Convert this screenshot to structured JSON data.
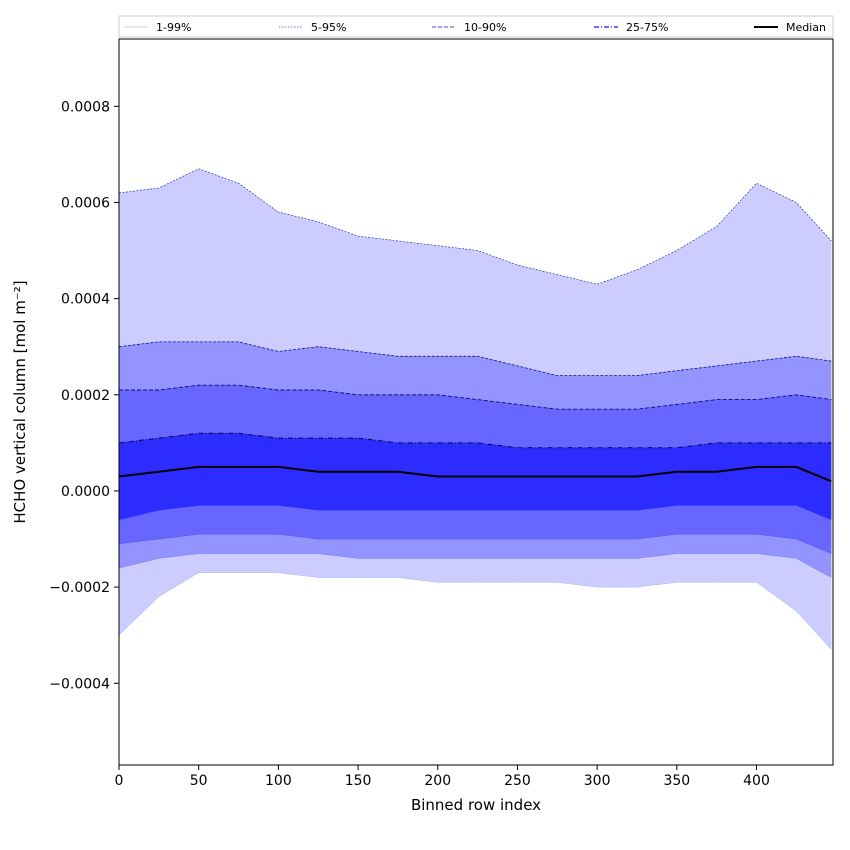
{
  "chart_data": {
    "type": "area",
    "xlabel": "Binned row index",
    "ylabel": "HCHO vertical column [mol m⁻²]",
    "xlim": [
      0,
      448
    ],
    "ylim": [
      -0.00057,
      0.00094
    ],
    "xticks": [
      0,
      50,
      100,
      150,
      200,
      250,
      300,
      350,
      400
    ],
    "xtick_labels": [
      "0",
      "50",
      "100",
      "150",
      "200",
      "250",
      "300",
      "350",
      "400"
    ],
    "yticks": [
      -0.0004,
      -0.0002,
      0.0,
      0.0002,
      0.0004,
      0.0006,
      0.0008
    ],
    "ytick_labels": [
      "−0.0004",
      "−0.0002",
      "0.0000",
      "0.0002",
      "0.0004",
      "0.0006",
      "0.0008"
    ],
    "grid": false,
    "legend_position": "top, spanning full width",
    "legend": [
      {
        "label": "1-99%",
        "color": "#d0d0d0",
        "style": "solid-thin"
      },
      {
        "label": "5-95%",
        "color": "#7a7ad8",
        "style": "dotted"
      },
      {
        "label": "10-90%",
        "color": "#6a6af0",
        "style": "dashed"
      },
      {
        "label": "25-75%",
        "color": "#3a3af0",
        "style": "dashdot"
      },
      {
        "label": "Median",
        "color": "#000000",
        "style": "solid-thick"
      }
    ],
    "band_colors": [
      "#ccccff",
      "#9494ff",
      "#6767ff",
      "#2c2cff"
    ],
    "x": [
      0,
      25,
      50,
      75,
      100,
      125,
      150,
      175,
      200,
      225,
      250,
      275,
      300,
      325,
      350,
      375,
      400,
      425,
      447
    ],
    "series": [
      {
        "name": "99%",
        "values": [
          0.00062,
          0.00063,
          0.00067,
          0.00064,
          0.00058,
          0.00056,
          0.00053,
          0.00052,
          0.00051,
          0.0005,
          0.00047,
          0.00045,
          0.00043,
          0.00046,
          0.0005,
          0.00055,
          0.00064,
          0.0006,
          0.00052
        ]
      },
      {
        "name": "95%",
        "values": [
          0.0003,
          0.00031,
          0.00031,
          0.00031,
          0.00029,
          0.0003,
          0.00029,
          0.00028,
          0.00028,
          0.00028,
          0.00026,
          0.00024,
          0.00024,
          0.00024,
          0.00025,
          0.00026,
          0.00027,
          0.00028,
          0.00027
        ]
      },
      {
        "name": "90%",
        "values": [
          0.00021,
          0.00021,
          0.00022,
          0.00022,
          0.00021,
          0.00021,
          0.0002,
          0.0002,
          0.0002,
          0.00019,
          0.00018,
          0.00017,
          0.00017,
          0.00017,
          0.00018,
          0.00019,
          0.00019,
          0.0002,
          0.00019
        ]
      },
      {
        "name": "75%",
        "values": [
          0.0001,
          0.00011,
          0.00012,
          0.00012,
          0.00011,
          0.00011,
          0.00011,
          0.0001,
          0.0001,
          0.0001,
          9e-05,
          9e-05,
          9e-05,
          9e-05,
          9e-05,
          0.0001,
          0.0001,
          0.0001,
          0.0001
        ]
      },
      {
        "name": "Median",
        "values": [
          3e-05,
          4e-05,
          5e-05,
          5e-05,
          5e-05,
          4e-05,
          4e-05,
          4e-05,
          3e-05,
          3e-05,
          3e-05,
          3e-05,
          3e-05,
          3e-05,
          4e-05,
          4e-05,
          5e-05,
          5e-05,
          2e-05
        ]
      },
      {
        "name": "25%",
        "values": [
          -6e-05,
          -4e-05,
          -3e-05,
          -3e-05,
          -3e-05,
          -4e-05,
          -4e-05,
          -4e-05,
          -4e-05,
          -4e-05,
          -4e-05,
          -4e-05,
          -4e-05,
          -4e-05,
          -3e-05,
          -3e-05,
          -3e-05,
          -3e-05,
          -6e-05
        ]
      },
      {
        "name": "10%",
        "values": [
          -0.00011,
          -0.0001,
          -9e-05,
          -9e-05,
          -9e-05,
          -0.0001,
          -0.0001,
          -0.0001,
          -0.0001,
          -0.0001,
          -0.0001,
          -0.0001,
          -0.0001,
          -0.0001,
          -9e-05,
          -9e-05,
          -9e-05,
          -0.0001,
          -0.00013
        ]
      },
      {
        "name": "5%",
        "values": [
          -0.00016,
          -0.00014,
          -0.00013,
          -0.00013,
          -0.00013,
          -0.00013,
          -0.00014,
          -0.00014,
          -0.00014,
          -0.00014,
          -0.00014,
          -0.00014,
          -0.00014,
          -0.00014,
          -0.00013,
          -0.00013,
          -0.00013,
          -0.00014,
          -0.00018
        ]
      },
      {
        "name": "1%",
        "values": [
          -0.0003,
          -0.00022,
          -0.00017,
          -0.00017,
          -0.00017,
          -0.00018,
          -0.00018,
          -0.00018,
          -0.00019,
          -0.00019,
          -0.00019,
          -0.00019,
          -0.0002,
          -0.0002,
          -0.00019,
          -0.00019,
          -0.00019,
          -0.00025,
          -0.00033
        ]
      }
    ]
  }
}
